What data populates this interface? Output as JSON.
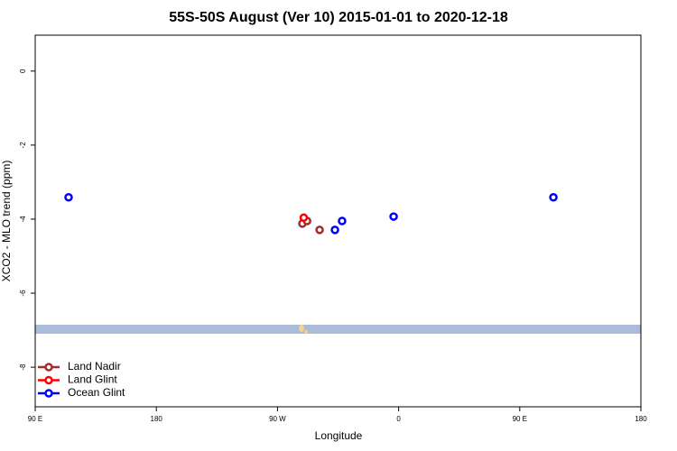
{
  "chart_data": {
    "type": "scatter",
    "title": "55S-50S August (Ver 10)   2015-01-01 to 2020-12-18",
    "x_label": "Longitude",
    "y_label": "XCO2 - MLO trend (ppm)",
    "xlim": [
      -270,
      180
    ],
    "ylim": [
      -9.07,
      0.97
    ],
    "xticks": [
      {
        "value": -270,
        "label": "90 E"
      },
      {
        "value": -180,
        "label": "180"
      },
      {
        "value": -90,
        "label": "90 W"
      },
      0,
      {
        "value": 90,
        "label": "90 E"
      },
      {
        "value": 180,
        "label": "180"
      }
    ],
    "yticks": [
      0,
      -2,
      -4,
      -6,
      -8
    ],
    "legend": "bottom-left",
    "series": [
      {
        "name": "Land Nadir",
        "color": "#a52a2a",
        "x": [
          -71.5,
          -68,
          -58.7
        ],
        "values": [
          -4.12,
          -4.05,
          -4.29
        ]
      },
      {
        "name": "Land Glint",
        "color": "#ff0000",
        "x": [
          -70.5
        ],
        "values": [
          -3.96
        ]
      },
      {
        "name": "Ocean Glint",
        "color": "#0000ff",
        "x": [
          -245.2,
          115,
          -42,
          -47.3,
          -3.7
        ],
        "values": [
          -3.41,
          -3.41,
          -4.05,
          -4.29,
          -3.93
        ]
      }
    ]
  }
}
